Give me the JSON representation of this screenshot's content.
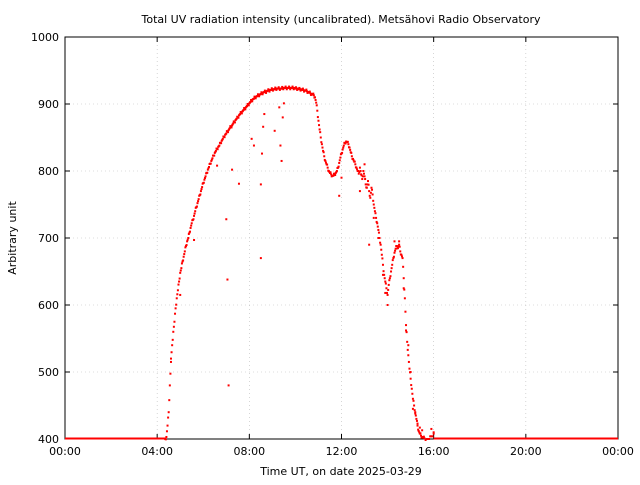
{
  "chart_data": {
    "type": "scatter",
    "title": "Total UV radiation intensity (uncalibrated). Metsähovi Radio Observatory",
    "xlabel": "Time UT, on date 2025-03-29",
    "ylabel": "Arbitrary unit",
    "xlim": [
      0,
      24
    ],
    "ylim": [
      400,
      1000
    ],
    "x_ticks": [
      0,
      4,
      8,
      12,
      16,
      20,
      24
    ],
    "x_tick_labels": [
      "00:00",
      "04:00",
      "08:00",
      "12:00",
      "16:00",
      "20:00",
      "00:00"
    ],
    "y_ticks": [
      400,
      500,
      600,
      700,
      800,
      900,
      1000
    ],
    "y_tick_labels": [
      "400",
      "500",
      "600",
      "700",
      "800",
      "900",
      "1000"
    ],
    "grid": true,
    "series": [
      {
        "color": "#ff0000",
        "x_unit": "hours UT",
        "baseline_before": {
          "x_range": [
            0,
            4.4
          ],
          "y": 400
        },
        "baseline_after": {
          "x_range": [
            16.0,
            24
          ],
          "y": 400
        },
        "points": [
          [
            4.35,
            400
          ],
          [
            4.4,
            403
          ],
          [
            4.45,
            420
          ],
          [
            4.5,
            440
          ],
          [
            4.55,
            480
          ],
          [
            4.6,
            515
          ],
          [
            4.65,
            540
          ],
          [
            4.7,
            560
          ],
          [
            4.75,
            575
          ],
          [
            4.8,
            595
          ],
          [
            4.85,
            610
          ],
          [
            4.9,
            622
          ],
          [
            4.95,
            635
          ],
          [
            5.0,
            648
          ],
          [
            5.05,
            655
          ],
          [
            5.1,
            665
          ],
          [
            5.15,
            672
          ],
          [
            5.2,
            680
          ],
          [
            5.25,
            688
          ],
          [
            5.3,
            695
          ],
          [
            5.35,
            700
          ],
          [
            5.4,
            708
          ],
          [
            5.45,
            715
          ],
          [
            5.5,
            722
          ],
          [
            5.55,
            727
          ],
          [
            5.6,
            733
          ],
          [
            5.65,
            740
          ],
          [
            5.7,
            746
          ],
          [
            5.75,
            752
          ],
          [
            5.8,
            758
          ],
          [
            5.85,
            764
          ],
          [
            5.9,
            770
          ],
          [
            5.95,
            776
          ],
          [
            6.0,
            782
          ],
          [
            6.05,
            787
          ],
          [
            6.1,
            792
          ],
          [
            6.15,
            797
          ],
          [
            6.2,
            802
          ],
          [
            6.25,
            806
          ],
          [
            6.3,
            811
          ],
          [
            6.35,
            815
          ],
          [
            6.4,
            819
          ],
          [
            6.45,
            823
          ],
          [
            6.5,
            827
          ],
          [
            6.55,
            830
          ],
          [
            6.6,
            833
          ],
          [
            6.65,
            836
          ],
          [
            6.7,
            838
          ],
          [
            6.75,
            842
          ],
          [
            6.8,
            845
          ],
          [
            6.85,
            848
          ],
          [
            6.9,
            851
          ],
          [
            6.95,
            854
          ],
          [
            7.0,
            856
          ],
          [
            7.05,
            859
          ],
          [
            7.1,
            861
          ],
          [
            7.15,
            864
          ],
          [
            7.2,
            866
          ],
          [
            7.25,
            868
          ],
          [
            7.3,
            871
          ],
          [
            7.35,
            873
          ],
          [
            7.4,
            876
          ],
          [
            7.45,
            878
          ],
          [
            7.5,
            880
          ],
          [
            7.55,
            883
          ],
          [
            7.6,
            885
          ],
          [
            7.65,
            887
          ],
          [
            7.7,
            889
          ],
          [
            7.75,
            891
          ],
          [
            7.8,
            893
          ],
          [
            7.85,
            895
          ],
          [
            7.9,
            897
          ],
          [
            7.95,
            899
          ],
          [
            8.0,
            901
          ],
          [
            8.05,
            903
          ],
          [
            8.1,
            905
          ],
          [
            8.15,
            907
          ],
          [
            8.2,
            908
          ],
          [
            8.25,
            910
          ],
          [
            8.3,
            911
          ],
          [
            8.35,
            912
          ],
          [
            8.4,
            913
          ],
          [
            8.45,
            914
          ],
          [
            8.5,
            915
          ],
          [
            8.55,
            916
          ],
          [
            8.6,
            917
          ],
          [
            8.65,
            918
          ],
          [
            8.7,
            918
          ],
          [
            8.75,
            919
          ],
          [
            8.8,
            920
          ],
          [
            8.85,
            920
          ],
          [
            8.9,
            921
          ],
          [
            8.95,
            921
          ],
          [
            9.0,
            922
          ],
          [
            9.05,
            922
          ],
          [
            9.1,
            922
          ],
          [
            9.15,
            923
          ],
          [
            9.2,
            923
          ],
          [
            9.25,
            923
          ],
          [
            9.3,
            923
          ],
          [
            9.35,
            923
          ],
          [
            9.4,
            923
          ],
          [
            9.45,
            924
          ],
          [
            9.5,
            924
          ],
          [
            9.55,
            924
          ],
          [
            9.6,
            924
          ],
          [
            9.65,
            924
          ],
          [
            9.7,
            924
          ],
          [
            9.75,
            924
          ],
          [
            9.8,
            924
          ],
          [
            9.85,
            924
          ],
          [
            9.9,
            924
          ],
          [
            9.95,
            924
          ],
          [
            10.0,
            923
          ],
          [
            10.05,
            923
          ],
          [
            10.1,
            923
          ],
          [
            10.15,
            922
          ],
          [
            10.2,
            922
          ],
          [
            10.25,
            922
          ],
          [
            10.3,
            921
          ],
          [
            10.35,
            921
          ],
          [
            10.4,
            920
          ],
          [
            10.45,
            920
          ],
          [
            10.5,
            919
          ],
          [
            10.55,
            918
          ],
          [
            10.6,
            917
          ],
          [
            10.65,
            916
          ],
          [
            10.7,
            915
          ],
          [
            10.75,
            914
          ],
          [
            10.8,
            913
          ],
          [
            10.85,
            910
          ],
          [
            10.9,
            902
          ],
          [
            10.95,
            890
          ],
          [
            11.0,
            875
          ],
          [
            11.05,
            862
          ],
          [
            11.1,
            850
          ],
          [
            11.15,
            840
          ],
          [
            11.2,
            830
          ],
          [
            11.25,
            822
          ],
          [
            11.3,
            815
          ],
          [
            11.35,
            810
          ],
          [
            11.4,
            805
          ],
          [
            11.45,
            800
          ],
          [
            11.5,
            797
          ],
          [
            11.55,
            795
          ],
          [
            11.6,
            793
          ],
          [
            11.65,
            793
          ],
          [
            11.7,
            795
          ],
          [
            11.75,
            797
          ],
          [
            11.8,
            800
          ],
          [
            11.85,
            805
          ],
          [
            11.9,
            812
          ],
          [
            11.95,
            820
          ],
          [
            12.0,
            826
          ],
          [
            12.05,
            832
          ],
          [
            12.1,
            838
          ],
          [
            12.15,
            842
          ],
          [
            12.2,
            844
          ],
          [
            12.25,
            843
          ],
          [
            12.3,
            840
          ],
          [
            12.35,
            835
          ],
          [
            12.4,
            828
          ],
          [
            12.45,
            822
          ],
          [
            12.5,
            818
          ],
          [
            12.55,
            814
          ],
          [
            12.6,
            810
          ],
          [
            12.65,
            805
          ],
          [
            12.7,
            800
          ],
          [
            12.75,
            796
          ],
          [
            12.8,
            805
          ],
          [
            12.85,
            795
          ],
          [
            12.9,
            788
          ],
          [
            12.95,
            800
          ],
          [
            13.0,
            792
          ],
          [
            13.05,
            780
          ],
          [
            13.1,
            775
          ],
          [
            13.15,
            785
          ],
          [
            13.2,
            770
          ],
          [
            13.25,
            760
          ],
          [
            13.3,
            775
          ],
          [
            13.35,
            765
          ],
          [
            13.4,
            750
          ],
          [
            13.45,
            740
          ],
          [
            13.5,
            730
          ],
          [
            13.55,
            722
          ],
          [
            13.6,
            712
          ],
          [
            13.65,
            700
          ],
          [
            13.7,
            690
          ],
          [
            13.75,
            675
          ],
          [
            13.8,
            660
          ],
          [
            13.85,
            645
          ],
          [
            13.9,
            635
          ],
          [
            13.95,
            625
          ],
          [
            14.0,
            615
          ],
          [
            14.05,
            630
          ],
          [
            14.1,
            640
          ],
          [
            14.15,
            650
          ],
          [
            14.2,
            660
          ],
          [
            14.25,
            670
          ],
          [
            14.3,
            678
          ],
          [
            14.35,
            684
          ],
          [
            14.4,
            688
          ],
          [
            14.45,
            685
          ],
          [
            14.5,
            690
          ],
          [
            14.55,
            680
          ],
          [
            14.6,
            675
          ],
          [
            14.65,
            670
          ],
          [
            14.7,
            640
          ],
          [
            14.75,
            610
          ],
          [
            14.8,
            570
          ],
          [
            14.85,
            545
          ],
          [
            14.9,
            525
          ],
          [
            14.95,
            505
          ],
          [
            15.0,
            490
          ],
          [
            15.05,
            475
          ],
          [
            15.1,
            460
          ],
          [
            15.15,
            450
          ],
          [
            15.2,
            440
          ],
          [
            15.25,
            430
          ],
          [
            15.3,
            420
          ],
          [
            15.35,
            412
          ],
          [
            15.4,
            408
          ],
          [
            15.45,
            405
          ],
          [
            15.5,
            403
          ],
          [
            15.55,
            402
          ],
          [
            15.6,
            401
          ],
          [
            15.7,
            400
          ],
          [
            15.8,
            400
          ],
          [
            15.9,
            404
          ],
          [
            16.0,
            408
          ]
        ],
        "outliers": [
          [
            4.6,
            520
          ],
          [
            5.0,
            615
          ],
          [
            5.6,
            697
          ],
          [
            6.6,
            808
          ],
          [
            7.0,
            728
          ],
          [
            7.05,
            638
          ],
          [
            7.1,
            480
          ],
          [
            7.25,
            802
          ],
          [
            7.55,
            781
          ],
          [
            8.1,
            848
          ],
          [
            8.2,
            838
          ],
          [
            8.5,
            780
          ],
          [
            8.5,
            670
          ],
          [
            8.55,
            826
          ],
          [
            8.6,
            866
          ],
          [
            8.65,
            885
          ],
          [
            9.1,
            860
          ],
          [
            9.3,
            895
          ],
          [
            9.35,
            838
          ],
          [
            9.4,
            815
          ],
          [
            9.45,
            880
          ],
          [
            9.5,
            901
          ],
          [
            11.9,
            763
          ],
          [
            12.0,
            790
          ],
          [
            12.8,
            770
          ],
          [
            13.0,
            810
          ],
          [
            13.2,
            690
          ],
          [
            13.4,
            730
          ],
          [
            13.6,
            700
          ],
          [
            13.8,
            645
          ],
          [
            13.9,
            618
          ],
          [
            14.0,
            600
          ],
          [
            14.3,
            695
          ],
          [
            14.5,
            695
          ],
          [
            14.7,
            625
          ],
          [
            14.8,
            562
          ],
          [
            14.9,
            540
          ],
          [
            15.0,
            500
          ],
          [
            15.1,
            445
          ],
          [
            15.2,
            438
          ],
          [
            15.3,
            423
          ],
          [
            15.4,
            417
          ],
          [
            15.5,
            413
          ],
          [
            15.9,
            415
          ],
          [
            16.0,
            410
          ]
        ]
      }
    ]
  }
}
